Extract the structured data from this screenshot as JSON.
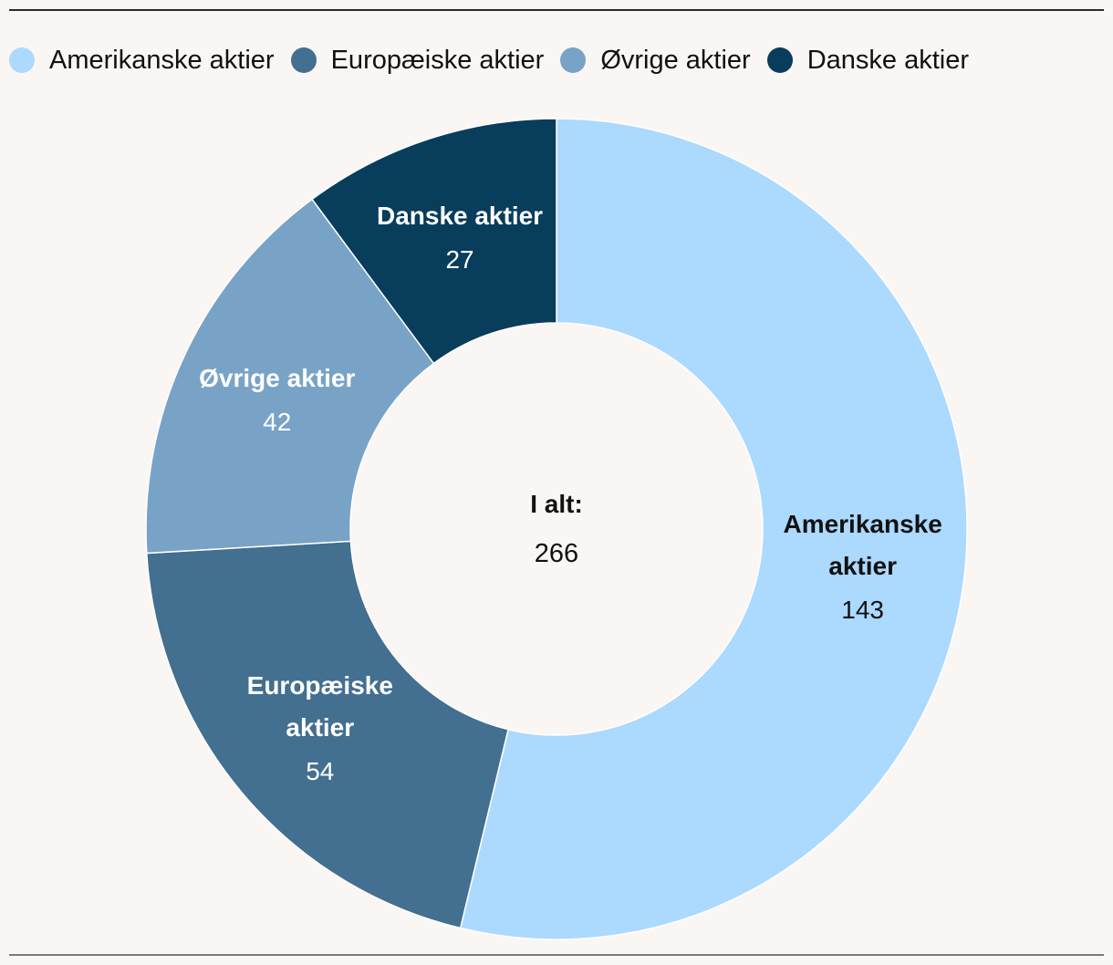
{
  "chart_data": {
    "type": "pie",
    "donut": true,
    "legend_position": "top",
    "series": [
      {
        "name": "Amerikanske aktier",
        "value": 143,
        "color": "#acd9fe",
        "text_color": "#111111",
        "label_lines": [
          "Amerikanske",
          "aktier"
        ]
      },
      {
        "name": "Europæiske aktier",
        "value": 54,
        "color": "#436f90",
        "text_color": "#ffffff",
        "label_lines": [
          "Europæiske",
          "aktier"
        ]
      },
      {
        "name": "Øvrige aktier",
        "value": 42,
        "color": "#78a3c6",
        "text_color": "#ffffff",
        "label_lines": [
          "Øvrige aktier"
        ]
      },
      {
        "name": "Danske aktier",
        "value": 27,
        "color": "#083d5c",
        "text_color": "#ffffff",
        "label_lines": [
          "Danske aktier"
        ]
      }
    ],
    "center": {
      "label": "I alt:",
      "value": "266"
    }
  }
}
